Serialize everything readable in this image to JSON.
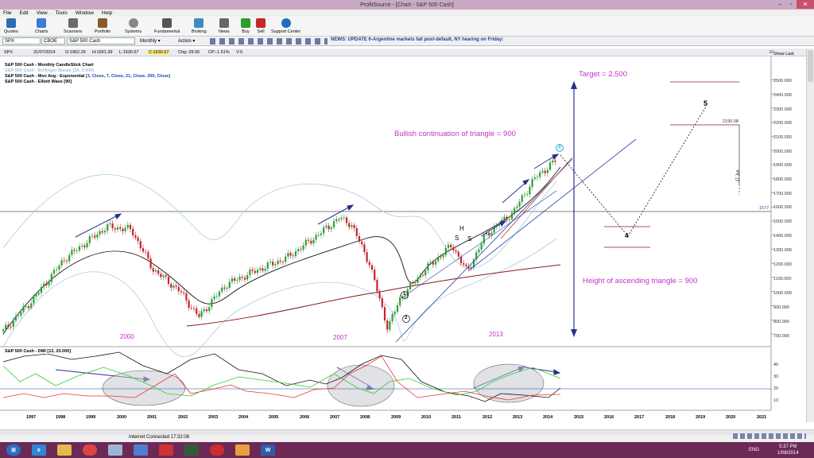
{
  "window": {
    "title": "ProfitSource - [Chart - S&P 500 Cash]"
  },
  "menu": [
    "File",
    "Edit",
    "View",
    "Tools",
    "Window",
    "Help"
  ],
  "toolbar": [
    {
      "label": "Quotes",
      "icon": "quotes-icon",
      "color": "#2e6db4"
    },
    {
      "label": "Charts",
      "icon": "charts-icon",
      "color": "#3a7bd5"
    },
    {
      "label": "Scanners",
      "icon": "scanners-icon",
      "color": "#5a5a5a"
    },
    {
      "label": "Portfolio",
      "icon": "portfolio-icon",
      "color": "#8a5a2b"
    },
    {
      "label": "Systems",
      "icon": "systems-icon",
      "color": "#777777"
    },
    {
      "label": "Fundamental",
      "icon": "fundamental-icon",
      "color": "#555555"
    },
    {
      "label": "Broking",
      "icon": "broking-icon",
      "color": "#3c8dbc"
    },
    {
      "label": "News",
      "icon": "news-icon",
      "color": "#555555"
    },
    {
      "label": "Buy",
      "icon": "buy-icon",
      "color": "#2a9d2a"
    },
    {
      "label": "Sell",
      "icon": "sell-icon",
      "color": "#c62828"
    },
    {
      "label": "Support Center",
      "icon": "support-icon",
      "color": "#1f6fbf"
    }
  ],
  "subbar": {
    "symbol": "SPX",
    "exchange": "CBOE",
    "name": "S&P 500 Cash",
    "period": "Monthly",
    "action": "Action",
    "news": "NEWS: UPDATE 6-Argentine markets fall post-default, NY hearing on Friday:"
  },
  "ohlc": {
    "symbol": "SPX",
    "date": "31/07/2014",
    "open": "O:1962.29",
    "high": "H:1991.39",
    "low": "L:1930.67",
    "close": "C:1930.67",
    "chg": "Chg:-29.56",
    "cp": "CP:-1.51%",
    "v": "V:0",
    "show_last": "Show Last"
  },
  "legend": [
    {
      "text": "S&P 500 Cash - Monthly CandleStick Chart",
      "color": "#000000"
    },
    {
      "text": "S&P 500 Cash - Bollinger Bands [20, 2.000]",
      "color": "#9ec3dd"
    },
    {
      "text": "S&P 500 Cash - Mov Avg - Exponential",
      "color": "#000000",
      "params": "[3, Close, 7, Close, 21, Close, 200, Close]"
    },
    {
      "text": "S&P 500 Cash - Elliott Wave [90]",
      "color": "#000000"
    }
  ],
  "annotations": {
    "target": "Target = 2,500",
    "bullish": "Bullish continuation of triangle = 900",
    "height": "Height of ascending triangle = 900",
    "y2000": "2000",
    "y2007": "2007",
    "y2013": "2013",
    "wave1": "1",
    "wave2": "2",
    "wave3": "3",
    "wave4": "4",
    "wave5": "5",
    "h": "H",
    "s1": "S",
    "s2": "S",
    "price_label": "2190.08",
    "hline_label": "1577",
    "date_label": "17 Jun"
  },
  "chart_data": {
    "type": "candlestick",
    "yticks": [
      "2500.000",
      "2400.000",
      "2300.000",
      "2200.000",
      "2100.000",
      "2000.000",
      "1900.000",
      "1800.000",
      "1700.000",
      "1600.000",
      "1500.000",
      "1400.000",
      "1300.000",
      "1200.000",
      "1100.000",
      "1000.000",
      "900.000",
      "800.000",
      "700.000"
    ],
    "xticks": [
      "1997",
      "1998",
      "1999",
      "2000",
      "2001",
      "2002",
      "2003",
      "2004",
      "2005",
      "2006",
      "2007",
      "2008",
      "2009",
      "2010",
      "2011",
      "2012",
      "2013",
      "2014",
      "2015",
      "2016",
      "2017",
      "2018",
      "2019",
      "2020",
      "2021"
    ],
    "close_path": [
      [
        1996.5,
        720
      ],
      [
        1997.5,
        950
      ],
      [
        1998.5,
        1230
      ],
      [
        1999.9,
        1460
      ],
      [
        2000.7,
        1440
      ],
      [
        2001.4,
        1160
      ],
      [
        2002.3,
        1000
      ],
      [
        2002.9,
        820
      ],
      [
        2003.8,
        1050
      ],
      [
        2004.8,
        1150
      ],
      [
        2005.8,
        1240
      ],
      [
        2006.8,
        1400
      ],
      [
        2007.5,
        1520
      ],
      [
        2007.9,
        1480
      ],
      [
        2008.5,
        1200
      ],
      [
        2009.1,
        740
      ],
      [
        2009.5,
        950
      ],
      [
        2010.3,
        1150
      ],
      [
        2011.2,
        1330
      ],
      [
        2011.7,
        1140
      ],
      [
        2012.3,
        1400
      ],
      [
        2013.2,
        1560
      ],
      [
        2013.9,
        1800
      ],
      [
        2014.6,
        1930
      ]
    ],
    "ylim": [
      650,
      2550
    ],
    "xlim": [
      1996.5,
      2021.5
    ],
    "oscillator": {
      "label": "S&P 500 Cash - DMI [13, 20.000]",
      "yticks": [
        "40",
        "30",
        "20",
        "10"
      ]
    }
  },
  "status": {
    "internet": "Internet Connected 17:32:08"
  },
  "taskbar": {
    "time": "5:37 PM",
    "date": "1/08/2014",
    "lang": "ENG"
  }
}
